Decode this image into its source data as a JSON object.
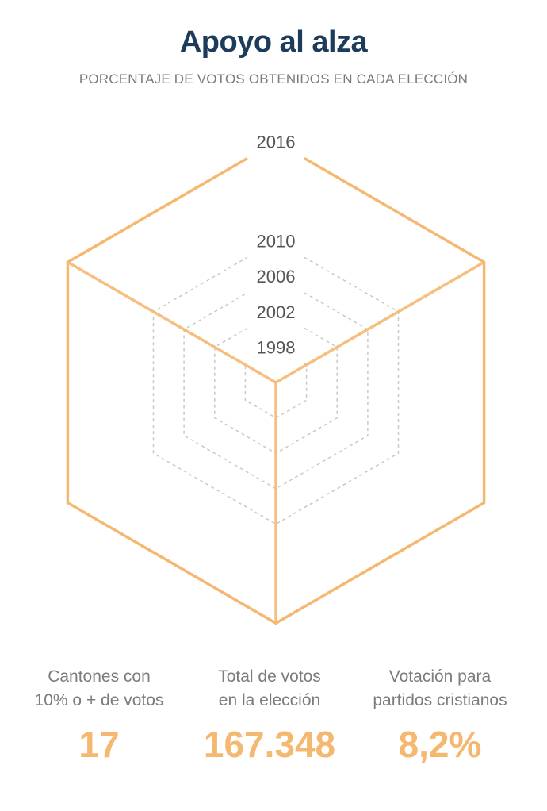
{
  "title": "Apoyo al alza",
  "subtitle": "PORCENTAJE DE VOTOS OBTENIDOS EN CADA ELECCIÓN",
  "chart_data": {
    "type": "radar",
    "axes": [
      "",
      "",
      ""
    ],
    "series": [
      {
        "label": "1998",
        "values": [
          1,
          1,
          1
        ]
      },
      {
        "label": "2002",
        "values": [
          2,
          2,
          2
        ]
      },
      {
        "label": "2006",
        "values": [
          3,
          3,
          3
        ]
      },
      {
        "label": "2010",
        "values": [
          4,
          4,
          4
        ]
      },
      {
        "label": "2016",
        "values": [
          6.8,
          6.8,
          6.8
        ]
      }
    ],
    "highlight": "2016",
    "colors": {
      "highlight": "#f5b871",
      "grid": "#c8c8c8",
      "label": "#555555"
    }
  },
  "stats": [
    {
      "label": "Cantones con\n10% o + de votos",
      "value": "17"
    },
    {
      "label": "Total de votos\nen la elección",
      "value": "167.348"
    },
    {
      "label": "Votación para\npartidos cristianos",
      "value": "8,2%"
    }
  ]
}
